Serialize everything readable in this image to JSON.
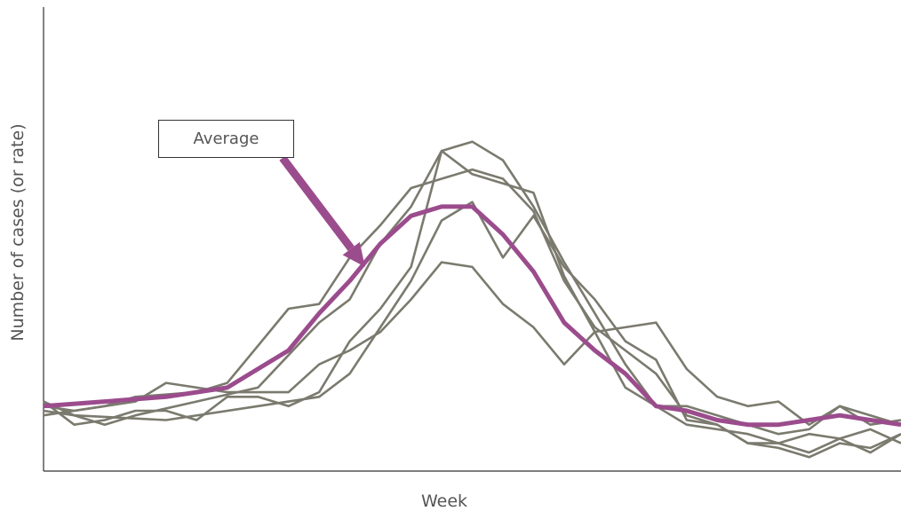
{
  "chart_data": {
    "type": "line",
    "title": "",
    "xlabel": "Week",
    "ylabel": "Number of cases (or rate)",
    "xlim": [
      0,
      28
    ],
    "ylim": [
      0,
      100
    ],
    "grid": false,
    "legend": "none",
    "series": [
      {
        "x": [
          0,
          1,
          4,
          7,
          9,
          10,
          11,
          12,
          13,
          14,
          15,
          16,
          17,
          18,
          19,
          20,
          21,
          22,
          23,
          24,
          25,
          26,
          27,
          28
        ],
        "y": [
          13,
          12,
          11,
          14,
          16,
          21,
          31,
          41,
          54,
          58,
          46,
          55,
          44,
          37,
          28,
          24,
          11,
          10,
          6,
          5,
          3,
          6,
          5,
          8
        ],
        "role": "individual"
      },
      {
        "x": [
          0,
          1,
          3,
          4,
          6,
          8,
          9,
          10,
          11,
          12,
          13,
          14,
          15,
          16,
          17,
          18,
          19,
          20,
          21,
          22,
          23,
          24,
          25,
          26,
          27,
          28
        ],
        "y": [
          14,
          13,
          15,
          19,
          17,
          17,
          23,
          26,
          30,
          37,
          45,
          44,
          36,
          31,
          23,
          30,
          31,
          32,
          22,
          16,
          14,
          15,
          10,
          14,
          10,
          11
        ],
        "role": "individual"
      },
      {
        "x": [
          0,
          1,
          2,
          3,
          5,
          6,
          7,
          8,
          9,
          10,
          11,
          12,
          13,
          14,
          15,
          16,
          17,
          18,
          19,
          20,
          21,
          22,
          23,
          24,
          25,
          26,
          27,
          28
        ],
        "y": [
          12,
          13,
          14,
          16,
          17,
          19,
          27,
          35,
          36,
          46,
          53,
          61,
          63,
          65,
          63,
          56,
          41,
          31,
          26,
          21,
          12,
          10,
          6,
          6,
          8,
          7,
          4,
          8
        ],
        "role": "individual"
      },
      {
        "x": [
          0,
          1,
          2,
          3,
          5,
          7,
          8,
          9,
          10,
          11,
          12,
          13,
          14,
          15,
          16,
          17,
          18,
          19,
          20,
          21,
          22,
          23,
          24,
          25,
          26,
          27,
          28
        ],
        "y": [
          15,
          12,
          10,
          12,
          15,
          18,
          25,
          32,
          37,
          49,
          57,
          69,
          71,
          67,
          57,
          45,
          34,
          23,
          14,
          14,
          12,
          10,
          8,
          9,
          14,
          12,
          10
        ],
        "role": "individual"
      },
      {
        "x": [
          0,
          1,
          2,
          3,
          4,
          5,
          6,
          7,
          8,
          9,
          10,
          11,
          12,
          13,
          14,
          15,
          16,
          17,
          18,
          19,
          20,
          21,
          22,
          23,
          24,
          25,
          26,
          27,
          28
        ],
        "y": [
          15,
          10,
          11,
          13,
          13,
          11,
          16,
          16,
          14,
          17,
          28,
          35,
          44,
          69,
          64,
          62,
          60,
          42,
          30,
          18,
          14,
          10,
          9,
          8,
          6,
          4,
          7,
          9,
          6
        ],
        "role": "individual"
      },
      {
        "name": "Average",
        "x": [
          0,
          2,
          4,
          5,
          6,
          7,
          8,
          9,
          10,
          11,
          12,
          13,
          14,
          15,
          16,
          17,
          18,
          19,
          20,
          21,
          22,
          23,
          24,
          25,
          26,
          27,
          28
        ],
        "y": [
          14,
          15,
          16,
          17,
          18,
          22,
          26,
          34,
          41,
          49,
          55,
          57,
          57,
          51,
          43,
          32,
          26,
          21,
          14,
          13,
          11,
          10,
          10,
          11,
          12,
          11,
          10
        ],
        "role": "average"
      }
    ],
    "annotation": {
      "text": "Average",
      "points_to_x": 10.5,
      "points_to_y": 44
    }
  },
  "colors": {
    "individual": "#7b7a6e",
    "average": "#9b4c8d",
    "axis": "#333333",
    "text": "#555555"
  }
}
